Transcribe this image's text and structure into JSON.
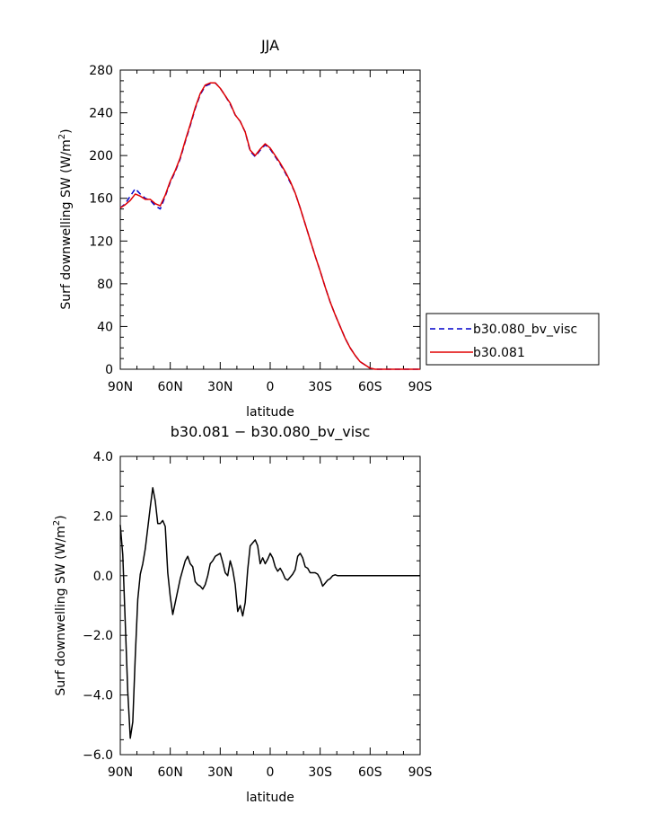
{
  "chart_data": [
    {
      "type": "line",
      "title": "JJA",
      "xlabel": "latitude",
      "ylabel": "Surf downwelling SW (W/m",
      "ylabel_sup": "2",
      "ylabel_close": ")",
      "xlim": [
        90,
        -90
      ],
      "ylim": [
        0,
        280
      ],
      "x_ticks": [
        90,
        60,
        30,
        0,
        -30,
        -60,
        -90
      ],
      "x_tick_labels": [
        "90N",
        "60N",
        "30N",
        "0",
        "30S",
        "60S",
        "90S"
      ],
      "y_ticks": [
        0,
        40,
        80,
        120,
        160,
        200,
        240,
        280
      ],
      "y_tick_labels": [
        "0",
        "40",
        "80",
        "120",
        "160",
        "200",
        "240",
        "280"
      ],
      "grid": false,
      "legend_position": "right",
      "series": [
        {
          "name": "b30.080_bv_visc",
          "color": "#0000cc",
          "dash": "dashed",
          "x": [
            90,
            87,
            84,
            81,
            78,
            75,
            72,
            69,
            66,
            63,
            60,
            57,
            54,
            51,
            48,
            45,
            42,
            39,
            36,
            33,
            30,
            27,
            24,
            21,
            18,
            15,
            12,
            9,
            6,
            3,
            0,
            -3,
            -6,
            -9,
            -12,
            -15,
            -18,
            -21,
            -24,
            -27,
            -30,
            -33,
            -36,
            -39,
            -42,
            -45,
            -48,
            -51,
            -54,
            -57,
            -60,
            -63,
            -66,
            -69,
            -72,
            -75,
            -78,
            -81,
            -84,
            -87,
            -90
          ],
          "y": [
            151,
            155,
            162,
            169,
            164,
            160,
            158,
            153,
            150,
            162,
            175,
            185,
            197,
            213,
            228,
            244,
            257,
            265,
            267,
            268,
            263,
            256,
            248,
            238,
            232,
            222,
            204,
            199,
            205,
            210,
            206,
            199,
            192,
            184,
            175,
            165,
            151,
            136,
            121,
            106,
            92,
            77,
            63,
            51,
            40,
            29,
            20,
            13,
            7,
            4,
            1,
            0,
            0,
            0,
            0,
            0,
            0,
            0,
            0,
            0,
            0
          ]
        },
        {
          "name": "b30.081",
          "color": "#e00000",
          "dash": "solid",
          "x": [
            90,
            87,
            84,
            81,
            78,
            75,
            72,
            69,
            66,
            63,
            60,
            57,
            54,
            51,
            48,
            45,
            42,
            39,
            36,
            33,
            30,
            27,
            24,
            21,
            18,
            15,
            12,
            9,
            6,
            3,
            0,
            -3,
            -6,
            -9,
            -12,
            -15,
            -18,
            -21,
            -24,
            -27,
            -30,
            -33,
            -36,
            -39,
            -42,
            -45,
            -48,
            -51,
            -54,
            -57,
            -60,
            -63,
            -66,
            -69,
            -72,
            -75,
            -78,
            -81,
            -84,
            -87,
            -90
          ],
          "y": [
            151,
            154,
            158,
            164,
            162,
            159,
            159,
            155,
            153,
            163,
            176,
            186,
            198,
            214,
            229,
            245,
            258,
            266,
            268,
            268,
            263,
            256,
            249,
            238,
            232,
            222,
            205,
            200,
            206,
            211,
            207,
            200,
            193,
            185,
            176,
            165,
            151,
            136,
            121,
            106,
            92,
            77,
            63,
            51,
            40,
            29,
            20,
            13,
            7,
            4,
            1,
            0,
            0,
            0,
            0,
            0,
            0,
            0,
            0,
            0,
            0
          ]
        }
      ]
    },
    {
      "type": "line",
      "title": "b30.081  −  b30.080_bv_visc",
      "xlabel": "latitude",
      "ylabel": "Surf downwelling SW (W/m",
      "ylabel_sup": "2",
      "ylabel_close": ")",
      "xlim": [
        90,
        -90
      ],
      "ylim": [
        -6,
        4
      ],
      "x_ticks": [
        90,
        60,
        30,
        0,
        -30,
        -60,
        -90
      ],
      "x_tick_labels": [
        "90N",
        "60N",
        "30N",
        "0",
        "30S",
        "60S",
        "90S"
      ],
      "y_ticks": [
        -6,
        -4,
        -2,
        0,
        2,
        4
      ],
      "y_tick_labels": [
        "−6.0",
        "−4.0",
        "−2.0",
        "0.0",
        "2.0",
        "4.0"
      ],
      "grid": false,
      "series": [
        {
          "color": "#000000",
          "dash": "solid",
          "x": [
            90,
            88.5,
            87,
            85.5,
            84,
            82.5,
            81,
            79.5,
            78,
            76.5,
            75,
            73.5,
            72,
            70.5,
            69,
            67.5,
            66,
            64.5,
            63,
            61.5,
            60,
            58.5,
            57,
            55.5,
            54,
            52.5,
            51,
            49.5,
            48,
            46.5,
            45,
            43.5,
            42,
            40.5,
            39,
            37.5,
            36,
            34.5,
            33,
            31.5,
            30,
            28.5,
            27,
            25.5,
            24,
            22.5,
            21,
            19.5,
            18,
            16.5,
            15,
            13.5,
            12,
            10.5,
            9,
            7.5,
            6,
            4.5,
            3,
            1.5,
            0,
            -1.5,
            -3,
            -4.5,
            -6,
            -7.5,
            -9,
            -10.5,
            -12,
            -13.5,
            -15,
            -16.5,
            -18,
            -19.5,
            -21,
            -22.5,
            -24,
            -25.5,
            -27,
            -28.5,
            -30,
            -31.5,
            -33,
            -34.5,
            -36,
            -37.5,
            -39,
            -40.5,
            -42,
            -43.5,
            -45,
            -46.5,
            -48,
            -49.5,
            -51,
            -52.5,
            -54,
            -55.5,
            -57,
            -58.5,
            -60,
            -61.5,
            -63,
            -64.5,
            -66,
            -67.5,
            -69,
            -70.5,
            -72,
            -73.5,
            -75,
            -76.5,
            -78,
            -79.5,
            -81,
            -82.5,
            -84,
            -85.5,
            -87,
            -88.5,
            -90
          ],
          "y": [
            1.7,
            0.7,
            -1.6,
            -3.9,
            -5.45,
            -4.9,
            -2.7,
            -0.8,
            0.05,
            0.4,
            0.9,
            1.6,
            2.3,
            2.95,
            2.5,
            1.75,
            1.75,
            1.85,
            1.65,
            0.1,
            -0.7,
            -1.3,
            -0.9,
            -0.5,
            -0.1,
            0.2,
            0.5,
            0.65,
            0.4,
            0.3,
            -0.2,
            -0.3,
            -0.35,
            -0.45,
            -0.3,
            0.0,
            0.4,
            0.5,
            0.65,
            0.7,
            0.75,
            0.45,
            0.1,
            0.0,
            0.5,
            0.2,
            -0.3,
            -1.2,
            -1.0,
            -1.35,
            -0.9,
            0.2,
            1.0,
            1.1,
            1.2,
            1.0,
            0.4,
            0.6,
            0.4,
            0.55,
            0.75,
            0.6,
            0.3,
            0.15,
            0.25,
            0.1,
            -0.1,
            -0.15,
            -0.05,
            0.05,
            0.2,
            0.65,
            0.75,
            0.6,
            0.3,
            0.25,
            0.1,
            0.1,
            0.1,
            0.05,
            -0.1,
            -0.35,
            -0.25,
            -0.15,
            -0.1,
            0.0,
            0.03,
            0.0,
            0.0,
            0.0,
            0.0,
            0.0,
            0.0,
            0.0,
            0.0,
            0.0,
            0.0,
            0.0,
            0.0,
            0.0,
            0.0,
            0.0,
            0.0,
            0.0,
            0.0,
            0.0,
            0.0,
            0.0,
            0.0,
            0.0,
            0.0,
            0.0,
            0.0,
            0.0,
            0.0,
            0.0,
            0.0,
            0.0,
            0.0,
            0.0,
            0.0
          ]
        }
      ]
    }
  ]
}
